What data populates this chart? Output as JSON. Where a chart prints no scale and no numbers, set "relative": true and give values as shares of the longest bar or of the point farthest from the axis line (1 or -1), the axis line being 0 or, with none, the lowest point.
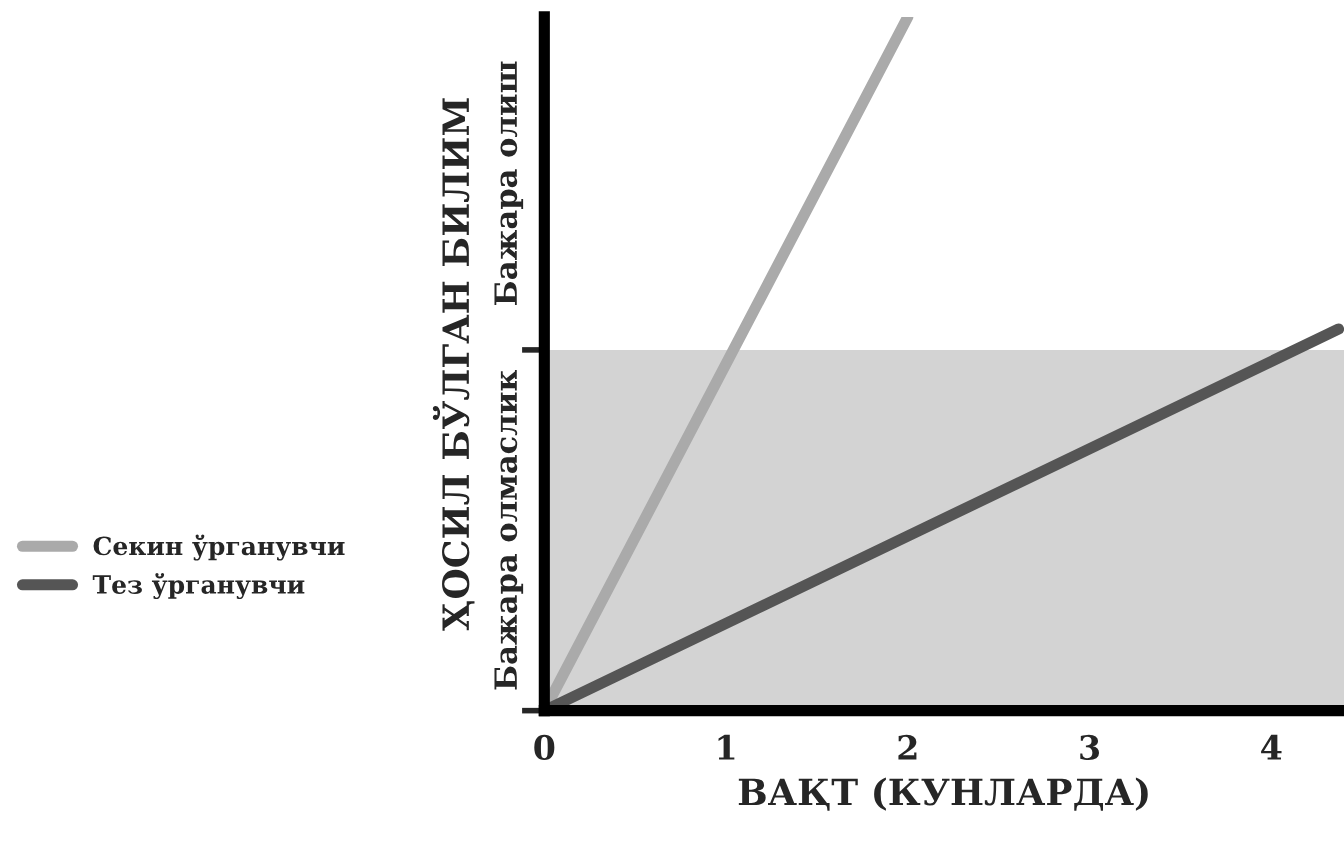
{
  "chart_data": {
    "type": "line",
    "relative": true,
    "xlabel": "ВАҚТ (КУНЛАРДА)",
    "ylabel": "ҲОСИЛ БЎЛГАН БИЛИМ",
    "xlim": [
      0,
      4.4
    ],
    "xticks": [
      0,
      1,
      2,
      3,
      4
    ],
    "series": [
      {
        "name": "Секин ўрганувчи",
        "color": "#aaaaaa",
        "x": [
          0,
          2
        ],
        "values": [
          0,
          1
        ]
      },
      {
        "name": "Тез ўрганувчи",
        "color": "#555555",
        "x": [
          0,
          4.37
        ],
        "values": [
          0,
          0.55
        ]
      }
    ],
    "bands": [
      {
        "axis": "y",
        "from": 0,
        "to": 0.52,
        "label": "Бажара олмаслик",
        "color": "#d3d3d3"
      }
    ],
    "annotations": [
      "Бажара олиш"
    ],
    "legend": "left",
    "grid": false,
    "marker": "none",
    "line_style": "solid"
  }
}
